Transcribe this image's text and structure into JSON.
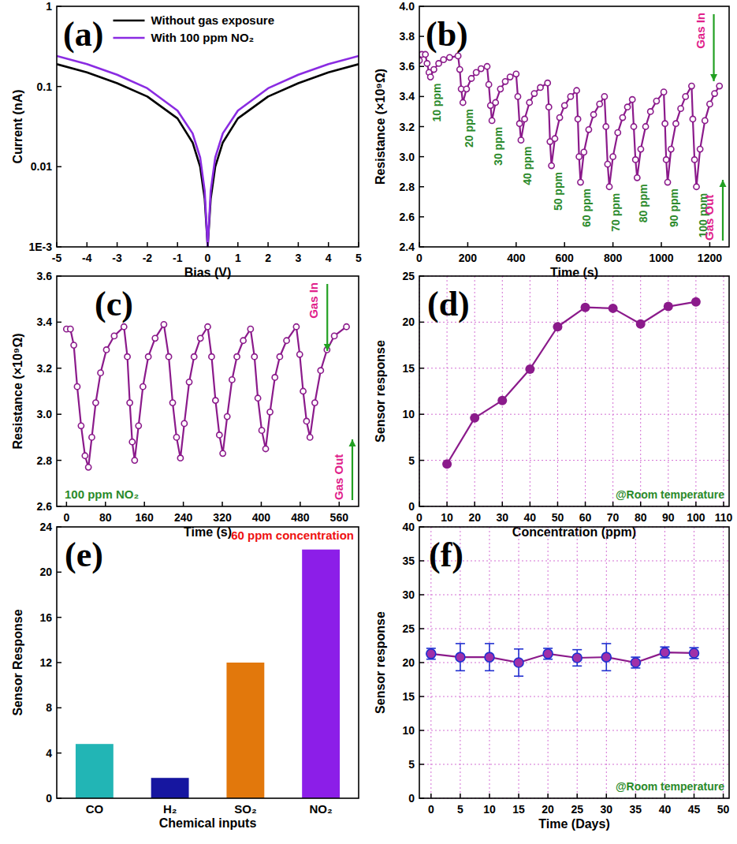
{
  "chart_data": [
    {
      "type": "line",
      "panel_label": "(a)",
      "x_label": "Bias (V)",
      "y_label": "Current (nA)",
      "log": "y",
      "legend": "upper center",
      "grid": false,
      "x": [
        -5,
        -4,
        -3,
        -2,
        -1,
        -0.5,
        -0.25,
        -0.1,
        0,
        0.1,
        0.25,
        0.5,
        1,
        2,
        3,
        4,
        5
      ],
      "series": [
        {
          "name": "Without gas exposure",
          "color": "#000000",
          "line_style": "solid",
          "marker": "none",
          "values": [
            0.19,
            0.15,
            0.11,
            0.075,
            0.04,
            0.02,
            0.01,
            0.004,
            0.001,
            0.004,
            0.01,
            0.02,
            0.04,
            0.075,
            0.11,
            0.15,
            0.19
          ]
        },
        {
          "name": "With 100 ppm NO₂",
          "color": "#8a2be2",
          "line_style": "solid",
          "marker": "none",
          "values": [
            0.24,
            0.19,
            0.14,
            0.095,
            0.05,
            0.026,
            0.013,
            0.005,
            0.001,
            0.005,
            0.013,
            0.026,
            0.05,
            0.095,
            0.14,
            0.19,
            0.24
          ]
        }
      ],
      "xlim": [
        -5,
        5
      ],
      "ylim": [
        0.001,
        1
      ],
      "xticks": [
        -5,
        -4,
        -3,
        -2,
        -1,
        0,
        1,
        2,
        3,
        4,
        5
      ],
      "yticks": [
        {
          "value": 0.001,
          "label": "1E-3"
        },
        0.01,
        0.1,
        1
      ]
    },
    {
      "type": "scatter",
      "panel_label": "(b)",
      "x_label": "Time (s)",
      "y_label": "Resistance (×10⁹Ω)",
      "grid": false,
      "concentration_labels": [
        "10 ppm",
        "20 ppm",
        "30 ppm",
        "40 ppm",
        "50 ppm",
        "60 ppm",
        "70 ppm",
        "80 ppm",
        "90 ppm",
        "100 ppm"
      ],
      "gas_in": "Gas In",
      "gas_out": "Gas Out",
      "x": [
        0,
        10,
        25,
        32,
        40,
        46,
        60,
        80,
        100,
        125,
        160,
        167,
        173,
        180,
        195,
        215,
        235,
        255,
        280,
        287,
        294,
        300,
        315,
        335,
        355,
        375,
        400,
        407,
        414,
        420,
        435,
        455,
        475,
        500,
        530,
        535,
        540,
        546,
        560,
        580,
        600,
        625,
        650,
        655,
        660,
        666,
        680,
        700,
        720,
        745,
        765,
        771,
        778,
        785,
        800,
        820,
        840,
        860,
        880,
        886,
        893,
        900,
        915,
        935,
        955,
        980,
        1010,
        1015,
        1020,
        1026,
        1040,
        1060,
        1080,
        1100,
        1125,
        1130,
        1137,
        1145,
        1160,
        1180,
        1200,
        1220,
        1240
      ],
      "series": [
        {
          "color": "#8b1a8b",
          "line_style": "solid",
          "marker": "circle-open",
          "values": [
            3.64,
            3.68,
            3.68,
            3.62,
            3.56,
            3.53,
            3.58,
            3.62,
            3.645,
            3.66,
            3.67,
            3.58,
            3.45,
            3.36,
            3.45,
            3.52,
            3.56,
            3.585,
            3.6,
            3.48,
            3.34,
            3.24,
            3.36,
            3.45,
            3.5,
            3.53,
            3.55,
            3.4,
            3.22,
            3.11,
            3.25,
            3.36,
            3.42,
            3.46,
            3.49,
            3.33,
            3.1,
            2.94,
            3.12,
            3.26,
            3.34,
            3.4,
            3.44,
            3.25,
            3.0,
            2.83,
            3.03,
            3.18,
            3.28,
            3.35,
            3.4,
            3.2,
            2.95,
            2.8,
            3.0,
            3.16,
            3.26,
            3.33,
            3.38,
            3.2,
            2.98,
            2.86,
            3.05,
            3.2,
            3.3,
            3.37,
            3.43,
            3.22,
            2.98,
            2.83,
            3.05,
            3.22,
            3.32,
            3.4,
            3.47,
            3.25,
            2.98,
            2.8,
            3.05,
            3.24,
            3.35,
            3.42,
            3.47
          ]
        }
      ],
      "xlim": [
        0,
        1280
      ],
      "ylim": [
        2.4,
        4.0
      ],
      "xticks": [
        0,
        200,
        400,
        600,
        800,
        1000,
        1200
      ],
      "yticks": [
        2.4,
        2.6,
        2.8,
        {
          "value": 3,
          "label": "3.0"
        },
        3.2,
        3.4,
        3.6,
        3.8,
        {
          "value": 4,
          "label": "4.0"
        }
      ]
    },
    {
      "type": "scatter",
      "panel_label": "(c)",
      "x_label": "Time (s)",
      "y_label": "Resistance (×10⁹Ω)",
      "grid": false,
      "gas_in": "Gas In",
      "gas_out": "Gas Out",
      "annotations": [
        "100 ppm NO₂"
      ],
      "x": [
        0,
        8,
        15,
        22,
        30,
        38,
        45,
        52,
        60,
        70,
        82,
        98,
        118,
        125,
        130,
        135,
        140,
        148,
        157,
        168,
        182,
        200,
        210,
        218,
        226,
        234,
        242,
        252,
        262,
        275,
        290,
        298,
        306,
        314,
        321,
        330,
        340,
        350,
        363,
        378,
        386,
        393,
        401,
        409,
        418,
        428,
        438,
        452,
        472,
        479,
        486,
        493,
        500,
        510,
        522,
        535,
        550,
        575
      ],
      "series": [
        {
          "color": "#8b1a8b",
          "line_style": "solid",
          "marker": "circle-open",
          "values": [
            3.37,
            3.37,
            3.3,
            3.12,
            2.95,
            2.82,
            2.77,
            2.9,
            3.05,
            3.18,
            3.28,
            3.34,
            3.38,
            3.25,
            3.05,
            2.88,
            2.8,
            2.95,
            3.12,
            3.25,
            3.33,
            3.39,
            3.25,
            3.05,
            2.9,
            2.81,
            2.96,
            3.14,
            3.25,
            3.33,
            3.38,
            3.25,
            3.06,
            2.91,
            2.83,
            2.99,
            3.15,
            3.25,
            3.32,
            3.37,
            3.25,
            3.07,
            2.93,
            2.85,
            3.01,
            3.16,
            3.25,
            3.32,
            3.38,
            3.26,
            3.1,
            2.97,
            2.9,
            3.05,
            3.19,
            3.28,
            3.34,
            3.38
          ]
        }
      ],
      "xlim": [
        -20,
        600
      ],
      "ylim": [
        2.6,
        3.6
      ],
      "xticks": [
        0,
        80,
        160,
        240,
        320,
        400,
        480,
        560
      ],
      "yticks": [
        2.6,
        2.8,
        {
          "value": 3,
          "label": "3.0"
        },
        3.2,
        3.4,
        3.6
      ]
    },
    {
      "type": "line",
      "panel_label": "(d)",
      "x_label": "Concentration (ppm)",
      "y_label": "Sensor response",
      "grid": true,
      "annotations": [
        "@Room temperature"
      ],
      "x": [
        10,
        20,
        30,
        40,
        50,
        60,
        70,
        80,
        90,
        100
      ],
      "series": [
        {
          "color": "#8b1a8b",
          "line_style": "solid",
          "marker": "circle",
          "values": [
            4.6,
            9.6,
            11.5,
            14.9,
            19.5,
            21.6,
            21.5,
            19.8,
            21.7,
            22.2
          ]
        }
      ],
      "xlim": [
        0,
        112
      ],
      "ylim": [
        0,
        25
      ],
      "xticks": [
        0,
        10,
        20,
        30,
        40,
        50,
        60,
        70,
        80,
        90,
        100,
        110
      ],
      "yticks": [
        0,
        5,
        10,
        15,
        20,
        25
      ]
    },
    {
      "type": "bar",
      "panel_label": "(e)",
      "x_label": "Chemical inputs",
      "y_label": "Sensor Response",
      "subtitle": "60 ppm concentration",
      "grid": false,
      "categories": [
        "CO",
        "H₂",
        "SO₂",
        "NO₂"
      ],
      "values": [
        4.8,
        1.8,
        12,
        22
      ],
      "colors": [
        "#22b5b5",
        "#1616a0",
        "#e2780c",
        "#8c1ee8"
      ],
      "ylim": [
        0,
        24
      ],
      "yticks": [
        0,
        4,
        8,
        12,
        16,
        20,
        24
      ]
    },
    {
      "type": "scatter",
      "panel_label": "(f)",
      "x_label": "Time (Days)",
      "y_label": "Sensor response",
      "grid": true,
      "annotations": [
        "@Room temperature"
      ],
      "x": [
        0,
        5,
        10,
        15,
        20,
        25,
        30,
        35,
        40,
        45
      ],
      "series": [
        {
          "color": "#8b1a8b",
          "line_style": "solid",
          "marker": "circle",
          "values": [
            21.3,
            20.8,
            20.8,
            20.0,
            21.3,
            20.7,
            20.8,
            20.0,
            21.5,
            21.4
          ],
          "errors": [
            0.8,
            2.0,
            2.0,
            2.0,
            0.8,
            1.2,
            2.0,
            0.8,
            0.8,
            0.8
          ]
        }
      ],
      "xlim": [
        -2,
        51
      ],
      "ylim": [
        0,
        40
      ],
      "xticks": [
        0,
        5,
        10,
        15,
        20,
        25,
        30,
        35,
        40,
        45,
        50
      ],
      "yticks": [
        0,
        5,
        10,
        15,
        20,
        25,
        30,
        35,
        40
      ]
    }
  ]
}
